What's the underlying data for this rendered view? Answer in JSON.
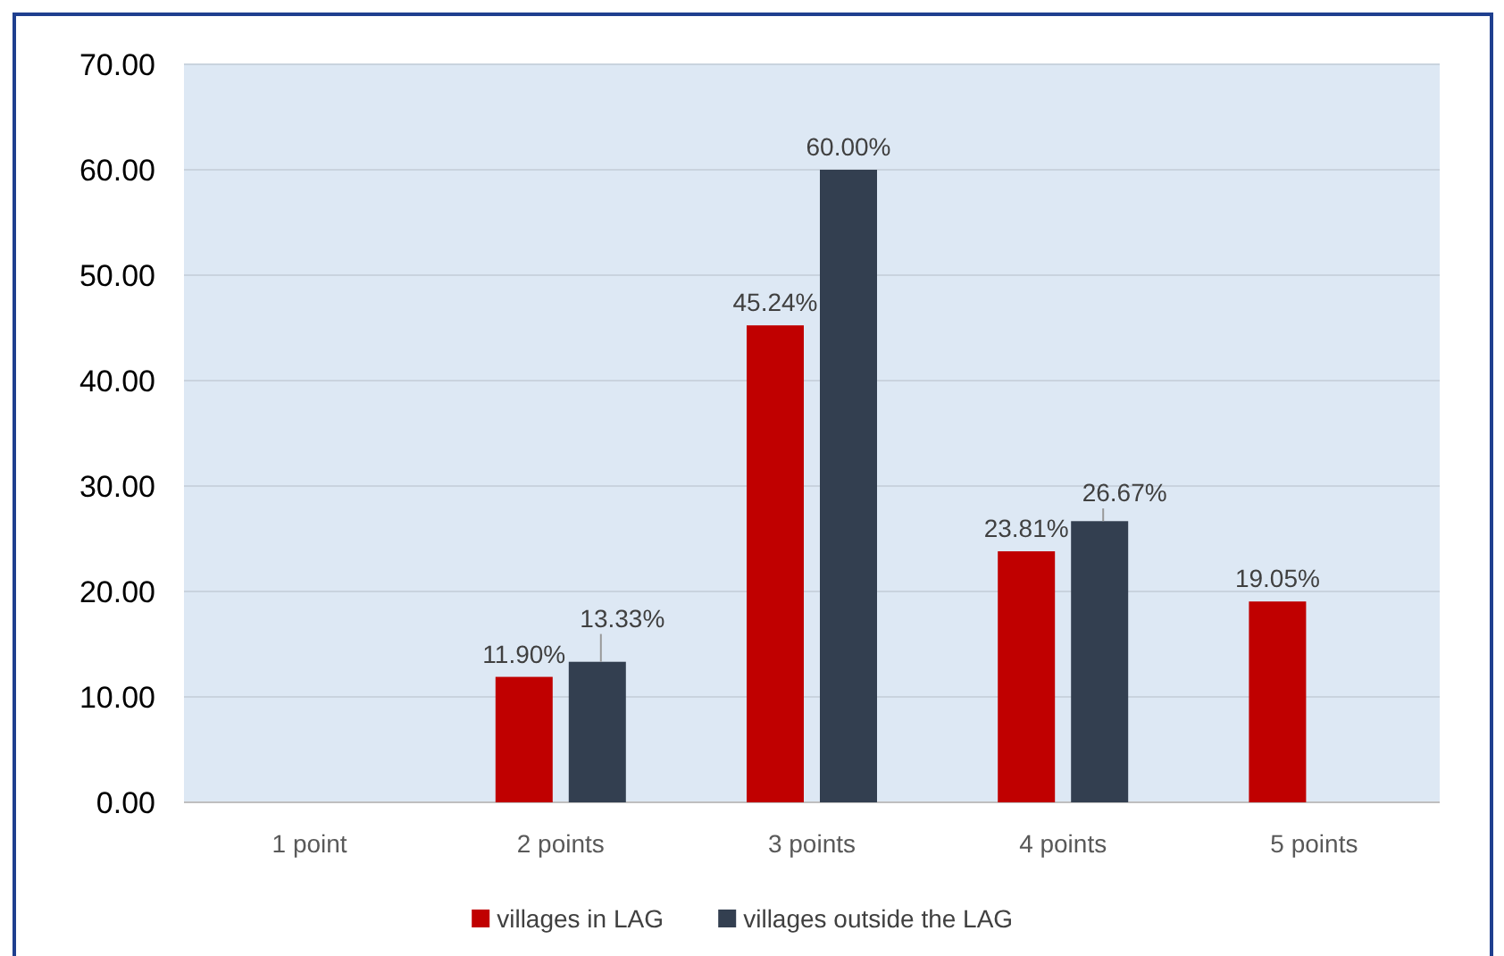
{
  "chart_data": {
    "type": "bar",
    "categories": [
      "1 point",
      "2 points",
      "3 points",
      "4 points",
      "5 points"
    ],
    "series": [
      {
        "name": "villages in LAG",
        "color": "#c00000",
        "values": [
          null,
          11.9,
          45.24,
          23.81,
          19.05
        ],
        "value_labels": [
          null,
          "11.90%",
          "45.24%",
          "23.81%",
          "19.05%"
        ]
      },
      {
        "name": "villages outside the LAG",
        "color": "#333f50",
        "values": [
          null,
          13.33,
          60.0,
          26.67,
          null
        ],
        "value_labels": [
          null,
          "13.33%",
          "60.00%",
          "26.67%",
          null
        ]
      }
    ],
    "ylim": [
      0,
      70
    ],
    "yticks": [
      {
        "value": 0,
        "label": "0.00"
      },
      {
        "value": 10,
        "label": "10.00"
      },
      {
        "value": 20,
        "label": "20.00"
      },
      {
        "value": 30,
        "label": "30.00"
      },
      {
        "value": 40,
        "label": "40.00"
      },
      {
        "value": 50,
        "label": "50.00"
      },
      {
        "value": 60,
        "label": "60.00"
      },
      {
        "value": 70,
        "label": "70.00"
      }
    ],
    "grid": "y",
    "legend": "bottom"
  }
}
